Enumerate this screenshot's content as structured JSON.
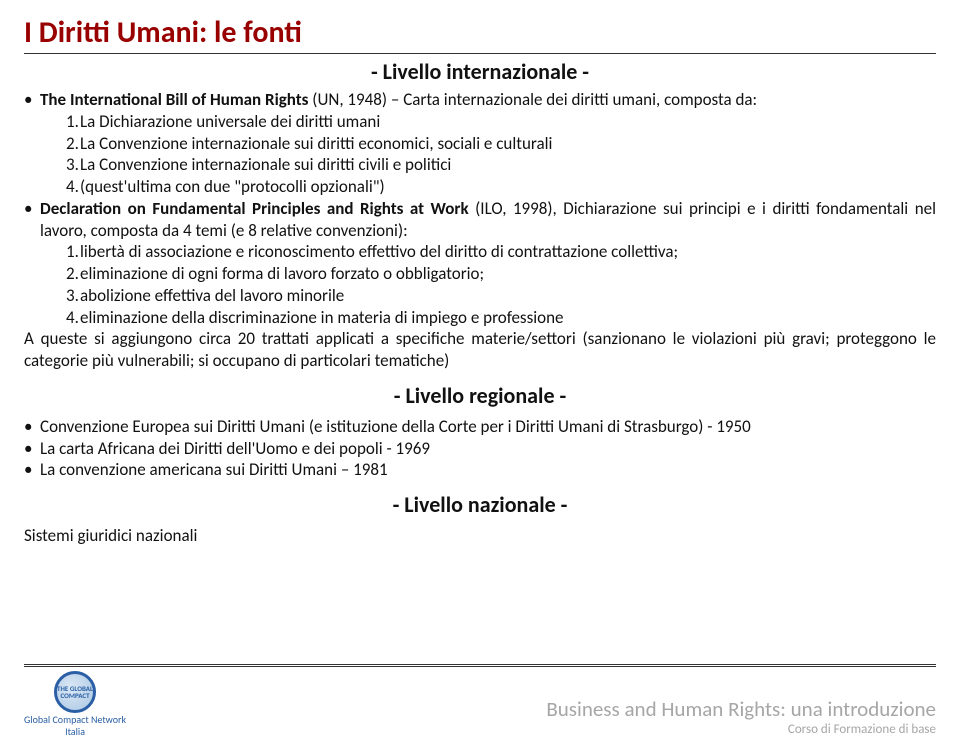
{
  "title": "I Diritti Umani: le fonti",
  "level1_heading": "- Livello internazionale -",
  "intl_bill_prefix": "The International Bill of Human Rights",
  "intl_bill_rest": " (UN, 1948) – Carta internazionale dei diritti umani, composta da:",
  "intl_items": {
    "n1": "1.",
    "t1": "La Dichiarazione universale dei diritti umani",
    "n2": "2.",
    "t2": "La Convenzione internazionale sui diritti economici, sociali e culturali",
    "n3": "3.",
    "t3": " La Convenzione internazionale sui diritti civili e politici",
    "n4": "4.",
    "t4": "(quest'ultima con due \"protocolli opzionali\")"
  },
  "decl_prefix": "Declaration on Fundamental Principles and Rights at Work",
  "decl_rest": " (ILO, 1998), Dichiarazione sui principi e i diritti fondamentali nel lavoro, composta da 4 temi (e 8 relative convenzioni):",
  "decl_items": {
    "n1": "1.",
    "t1": "libertà di associazione e riconoscimento effettivo del diritto di contrattazione collettiva;",
    "n2": "2.",
    "t2": "eliminazione di ogni forma di lavoro forzato o obbligatorio;",
    "n3": "3.",
    "t3": "abolizione effettiva del lavoro minorile",
    "n4": "4.",
    "t4": "eliminazione della discriminazione in materia di impiego e professione"
  },
  "trattati_text": "A queste si aggiungono circa 20 trattati applicati a specifiche materie/settori (sanzionano le violazioni più gravi; proteggono le categorie più vulnerabili; si occupano di particolari tematiche)",
  "level2_heading": "- Livello regionale -",
  "reg_items": {
    "t1": "Convenzione Europea sui Diritti Umani (e istituzione della Corte per i Diritti Umani di Strasburgo) - 1950",
    "t2": "La carta Africana dei Diritti dell'Uomo e dei popoli - 1969",
    "t3": "La convenzione americana sui Diritti Umani – 1981"
  },
  "level3_heading": "- Livello nazionale -",
  "naz_text": "Sistemi giuridici nazionali",
  "logo": {
    "label1": "Global Compact Network",
    "label2": "Italia"
  },
  "footer": {
    "title": "Business and Human Rights: una introduzione",
    "sub": "Corso di Formazione di base"
  },
  "colors": {
    "title": "#990000",
    "text": "#111111",
    "footer_text": "#a6a6a6",
    "logo_blue": "#2a5fa5",
    "bg": "#ffffff",
    "rule": "#333333"
  },
  "fontsize": {
    "title": 30,
    "subtitle": 22,
    "body": 17,
    "footer_title": 21,
    "footer_sub": 13,
    "logo_text": 10
  }
}
